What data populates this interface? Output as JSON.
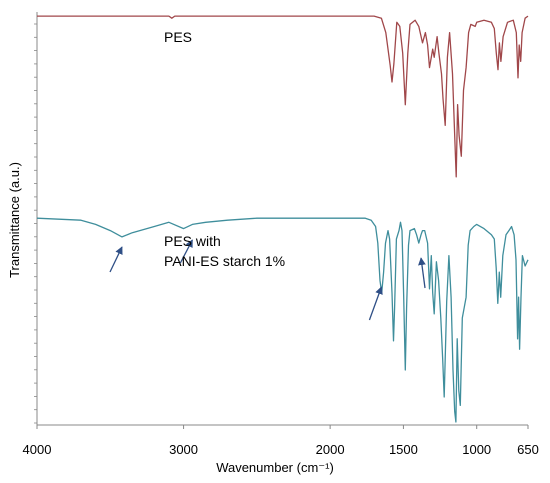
{
  "chart_data": {
    "type": "line",
    "xlabel": "Wavenumber (cm⁻¹)",
    "ylabel": "Transmittance (a.u.)",
    "xlim": [
      4000,
      650
    ],
    "x_reversed": true,
    "ylim": [
      0,
      100
    ],
    "x_tick_labels": [
      "4000",
      "3000",
      "2000",
      "1500",
      "1000",
      "650"
    ],
    "x_tick_values": [
      4000,
      3000,
      2000,
      1500,
      1000,
      650
    ],
    "grid": false,
    "annotations": [
      "PES",
      "PES with",
      "PANI-ES starch 1%"
    ],
    "arrow_positions_cm": [
      3420,
      2940,
      1650,
      1380
    ],
    "series": [
      {
        "name": "PES",
        "color": "#a0474a",
        "points": [
          [
            4000,
            98
          ],
          [
            3500,
            98
          ],
          [
            3100,
            98
          ],
          [
            3080,
            97
          ],
          [
            3060,
            98
          ],
          [
            2000,
            98
          ],
          [
            1700,
            98
          ],
          [
            1650,
            97
          ],
          [
            1620,
            90
          ],
          [
            1590,
            74
          ],
          [
            1578,
            66
          ],
          [
            1565,
            75
          ],
          [
            1545,
            95
          ],
          [
            1525,
            93
          ],
          [
            1505,
            80
          ],
          [
            1487,
            55
          ],
          [
            1470,
            80
          ],
          [
            1455,
            94
          ],
          [
            1420,
            96
          ],
          [
            1395,
            93
          ],
          [
            1370,
            85
          ],
          [
            1350,
            90
          ],
          [
            1335,
            84
          ],
          [
            1322,
            73
          ],
          [
            1300,
            82
          ],
          [
            1290,
            78
          ],
          [
            1270,
            88
          ],
          [
            1258,
            80
          ],
          [
            1240,
            70
          ],
          [
            1230,
            58
          ],
          [
            1215,
            45
          ],
          [
            1200,
            78
          ],
          [
            1185,
            90
          ],
          [
            1165,
            70
          ],
          [
            1150,
            40
          ],
          [
            1140,
            20
          ],
          [
            1130,
            55
          ],
          [
            1120,
            40
          ],
          [
            1105,
            30
          ],
          [
            1090,
            62
          ],
          [
            1072,
            73
          ],
          [
            1055,
            90
          ],
          [
            1040,
            94
          ],
          [
            1010,
            93
          ],
          [
            1000,
            95
          ],
          [
            950,
            96
          ],
          [
            900,
            95
          ],
          [
            880,
            92
          ],
          [
            866,
            80
          ],
          [
            855,
            72
          ],
          [
            845,
            85
          ],
          [
            835,
            76
          ],
          [
            820,
            88
          ],
          [
            790,
            95
          ],
          [
            750,
            96
          ],
          [
            730,
            90
          ],
          [
            718,
            68
          ],
          [
            710,
            84
          ],
          [
            700,
            76
          ],
          [
            690,
            90
          ],
          [
            670,
            97
          ],
          [
            650,
            98
          ]
        ]
      },
      {
        "name": "PES with PANI-ES starch 1%",
        "color": "#3f8e9c",
        "points": [
          [
            4000,
            98
          ],
          [
            3700,
            97
          ],
          [
            3600,
            95
          ],
          [
            3500,
            92
          ],
          [
            3420,
            89
          ],
          [
            3350,
            91
          ],
          [
            3200,
            94
          ],
          [
            3100,
            96
          ],
          [
            3000,
            93
          ],
          [
            2940,
            95
          ],
          [
            2850,
            96
          ],
          [
            2700,
            97
          ],
          [
            2500,
            98
          ],
          [
            2000,
            98
          ],
          [
            1760,
            98
          ],
          [
            1720,
            97
          ],
          [
            1690,
            94
          ],
          [
            1675,
            86
          ],
          [
            1660,
            68
          ],
          [
            1648,
            62
          ],
          [
            1635,
            72
          ],
          [
            1622,
            86
          ],
          [
            1605,
            92
          ],
          [
            1594,
            88
          ],
          [
            1578,
            62
          ],
          [
            1568,
            39
          ],
          [
            1560,
            55
          ],
          [
            1548,
            88
          ],
          [
            1530,
            92
          ],
          [
            1520,
            96
          ],
          [
            1510,
            92
          ],
          [
            1498,
            60
          ],
          [
            1487,
            25
          ],
          [
            1478,
            55
          ],
          [
            1465,
            85
          ],
          [
            1455,
            92
          ],
          [
            1425,
            93
          ],
          [
            1410,
            90
          ],
          [
            1395,
            86
          ],
          [
            1380,
            90
          ],
          [
            1370,
            92
          ],
          [
            1355,
            92
          ],
          [
            1335,
            86
          ],
          [
            1322,
            64
          ],
          [
            1310,
            80
          ],
          [
            1300,
            62
          ],
          [
            1290,
            52
          ],
          [
            1275,
            77
          ],
          [
            1260,
            68
          ],
          [
            1245,
            50
          ],
          [
            1232,
            30
          ],
          [
            1222,
            12
          ],
          [
            1205,
            58
          ],
          [
            1190,
            80
          ],
          [
            1175,
            60
          ],
          [
            1162,
            25
          ],
          [
            1150,
            5
          ],
          [
            1142,
            0
          ],
          [
            1133,
            40
          ],
          [
            1122,
            15
          ],
          [
            1112,
            8
          ],
          [
            1098,
            50
          ],
          [
            1085,
            55
          ],
          [
            1072,
            60
          ],
          [
            1058,
            85
          ],
          [
            1045,
            92
          ],
          [
            1020,
            94
          ],
          [
            1000,
            95
          ],
          [
            950,
            93
          ],
          [
            900,
            90
          ],
          [
            880,
            88
          ],
          [
            867,
            74
          ],
          [
            856,
            57
          ],
          [
            846,
            72
          ],
          [
            836,
            60
          ],
          [
            822,
            80
          ],
          [
            800,
            90
          ],
          [
            780,
            92
          ],
          [
            762,
            94
          ],
          [
            745,
            90
          ],
          [
            732,
            78
          ],
          [
            721,
            40
          ],
          [
            714,
            60
          ],
          [
            707,
            35
          ],
          [
            698,
            60
          ],
          [
            688,
            80
          ],
          [
            670,
            75
          ],
          [
            650,
            78
          ]
        ]
      }
    ]
  }
}
